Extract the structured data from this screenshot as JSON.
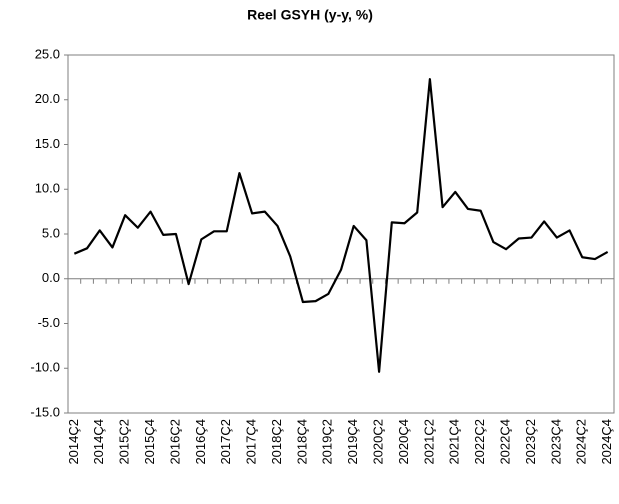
{
  "chart_data": {
    "type": "line",
    "title": "Reel GSYH (y-y, %)",
    "categories": [
      "2014Ç2",
      null,
      "2014Ç4",
      null,
      "2015Ç2",
      null,
      "2015Ç4",
      null,
      "2016Ç2",
      null,
      "2016Ç4",
      null,
      "2017Ç2",
      null,
      "2017Ç4",
      null,
      "2018Ç2",
      null,
      "2018Ç4",
      null,
      "2019Ç2",
      null,
      "2019Ç4",
      null,
      "2020Ç2",
      null,
      "2020Ç4",
      null,
      "2021Ç2",
      null,
      "2021Ç4",
      null,
      "2022Ç2",
      null,
      "2022Ç4",
      null,
      "2023Ç2",
      null,
      "2023Ç4",
      null,
      "2024Ç2",
      null,
      "2024Ç4"
    ],
    "series": [
      {
        "name": "Reel GSYH",
        "color": "#000000",
        "values": [
          2.8,
          3.4,
          5.4,
          3.5,
          7.1,
          5.7,
          7.5,
          4.9,
          5.0,
          -0.6,
          4.4,
          5.3,
          5.3,
          11.8,
          7.3,
          7.5,
          5.9,
          2.5,
          -2.6,
          -2.5,
          -1.7,
          1.0,
          5.9,
          4.3,
          -10.4,
          6.3,
          6.2,
          7.4,
          22.3,
          8.0,
          9.7,
          7.8,
          7.6,
          4.1,
          3.3,
          4.5,
          4.6,
          6.4,
          4.6,
          5.4,
          2.4,
          2.2,
          3.0
        ]
      }
    ],
    "ylim": [
      -15,
      25
    ],
    "yticks": [
      {
        "value": -15,
        "label": "-15.0"
      },
      {
        "value": -10,
        "label": "-10.0"
      },
      {
        "value": -5,
        "label": "-5.0"
      },
      {
        "value": 0,
        "label": "0.0"
      },
      {
        "value": 5,
        "label": "5.0"
      },
      {
        "value": 10,
        "label": "10.0"
      },
      {
        "value": 15,
        "label": "15.0"
      },
      {
        "value": 20,
        "label": "20.0"
      },
      {
        "value": 25,
        "label": "25.0"
      }
    ],
    "grid": false
  }
}
